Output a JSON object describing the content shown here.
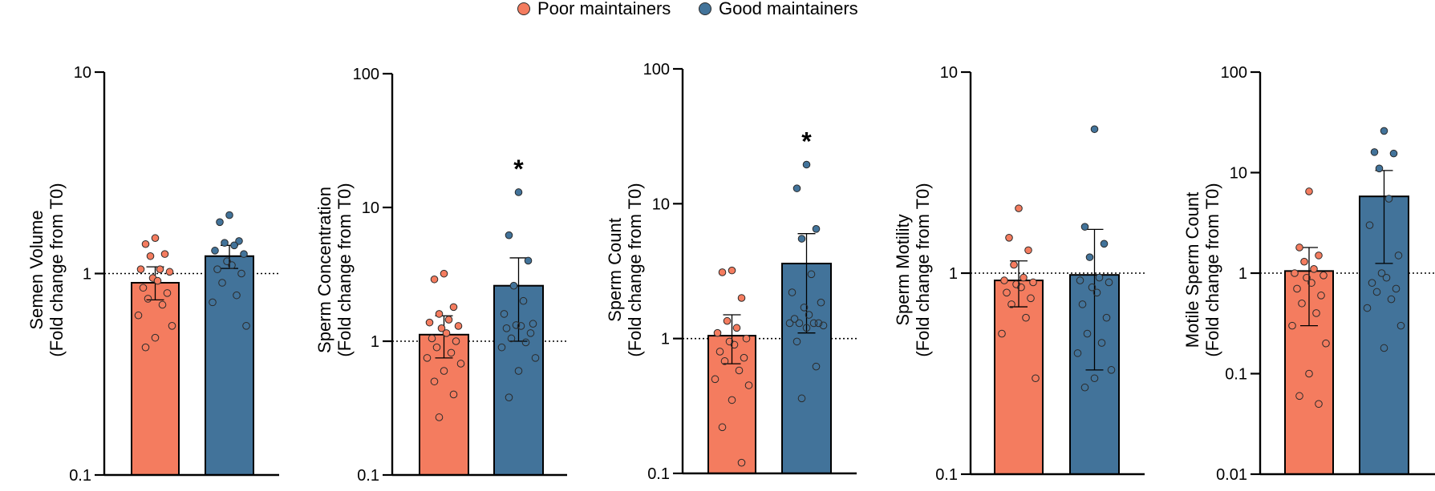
{
  "legend": {
    "items": [
      {
        "label": "Poor maintainers",
        "color": "#F47C5F"
      },
      {
        "label": "Good maintainers",
        "color": "#42739A"
      }
    ]
  },
  "chart_data": [
    {
      "type": "bar",
      "scale": "log",
      "ylabel_lines": [
        "Semen Volume",
        "(Fold change from T0)"
      ],
      "ylim": [
        0.1,
        10
      ],
      "ticks": [
        0.1,
        1,
        10
      ],
      "tick_labels": [
        "0.1",
        "1",
        "10"
      ],
      "reference_line": 1,
      "significance": "",
      "categories": [
        "Poor maintainers",
        "Good maintainers"
      ],
      "values": [
        0.9,
        1.22
      ],
      "error_upper": [
        1.08,
        1.38
      ],
      "error_lower": [
        0.74,
        1.06
      ],
      "points": [
        [
          1.5,
          1.4,
          1.25,
          1.22,
          1.05,
          1.05,
          1.02,
          0.95,
          0.92,
          0.85,
          0.8,
          0.75,
          0.7,
          0.62,
          0.55,
          0.48,
          0.43
        ],
        [
          1.95,
          1.8,
          1.45,
          1.42,
          1.38,
          1.3,
          1.25,
          1.15,
          1.1,
          1.05,
          1.0,
          0.9,
          0.78,
          0.72,
          0.55
        ]
      ]
    },
    {
      "type": "bar",
      "scale": "log",
      "ylabel_lines": [
        "Sperm Concentration",
        "(Fold change from T0)"
      ],
      "ylim": [
        0.1,
        100
      ],
      "ticks": [
        0.1,
        1,
        10,
        100
      ],
      "tick_labels": [
        "0.1",
        "1",
        "10",
        "100"
      ],
      "reference_line": 1,
      "significance": "*",
      "categories": [
        "Poor maintainers",
        "Good maintainers"
      ],
      "values": [
        1.12,
        2.6
      ],
      "error_upper": [
        1.55,
        4.2
      ],
      "error_lower": [
        0.75,
        1.0
      ],
      "points": [
        [
          3.2,
          2.9,
          1.8,
          1.6,
          1.45,
          1.38,
          1.3,
          1.25,
          1.15,
          1.05,
          1.0,
          0.9,
          0.82,
          0.75,
          0.68,
          0.6,
          0.5,
          0.4,
          0.27
        ],
        [
          13,
          6.2,
          4.0,
          2.6,
          2.0,
          1.6,
          1.35,
          1.32,
          1.3,
          1.25,
          1.15,
          1.05,
          0.98,
          0.9,
          0.75,
          0.6,
          0.38
        ]
      ]
    },
    {
      "type": "bar",
      "scale": "log",
      "ylabel_lines": [
        "Sperm Count",
        "(Fold change from T0)"
      ],
      "ylim": [
        0.1,
        100
      ],
      "ticks": [
        0.1,
        1,
        10,
        100
      ],
      "tick_labels": [
        "0.1",
        "1",
        "10",
        "100"
      ],
      "reference_line": 1,
      "significance": "*",
      "categories": [
        "Poor maintainers",
        "Good maintainers"
      ],
      "values": [
        1.05,
        3.6
      ],
      "error_upper": [
        1.5,
        6.0
      ],
      "error_lower": [
        0.65,
        1.1
      ],
      "points": [
        [
          3.2,
          3.1,
          2.0,
          1.35,
          1.2,
          1.1,
          1.0,
          0.95,
          0.9,
          0.8,
          0.72,
          0.68,
          0.58,
          0.5,
          0.45,
          0.35,
          0.22,
          0.12
        ],
        [
          19.5,
          13,
          6.5,
          5.5,
          3.0,
          2.2,
          1.85,
          1.7,
          1.5,
          1.4,
          1.3,
          1.3,
          1.3,
          1.3,
          1.25,
          1.2,
          0.95,
          0.62,
          0.36
        ]
      ]
    },
    {
      "type": "bar",
      "scale": "log",
      "ylabel_lines": [
        "Sperm Motility",
        "(Fold change from T0)"
      ],
      "ylim": [
        0.1,
        10
      ],
      "ticks": [
        0.1,
        1,
        10
      ],
      "tick_labels": [
        "0.1",
        "1",
        "10"
      ],
      "reference_line": 1,
      "significance": "",
      "categories": [
        "Poor maintainers",
        "Good maintainers"
      ],
      "values": [
        0.92,
        0.98
      ],
      "error_upper": [
        1.15,
        1.65
      ],
      "error_lower": [
        0.68,
        0.33
      ],
      "points": [
        [
          2.1,
          1.5,
          1.3,
          1.1,
          0.95,
          0.92,
          0.9,
          0.88,
          0.85,
          0.8,
          0.75,
          0.7,
          0.6,
          0.5,
          0.3
        ],
        [
          5.2,
          1.7,
          1.4,
          1.2,
          0.95,
          0.92,
          0.9,
          0.85,
          0.8,
          0.7,
          0.6,
          0.5,
          0.45,
          0.4,
          0.33,
          0.3,
          0.27
        ]
      ]
    },
    {
      "type": "bar",
      "scale": "log",
      "ylabel_lines": [
        "Motile Sperm Count",
        "(Fold change from T0)"
      ],
      "ylim": [
        0.01,
        100
      ],
      "ticks": [
        0.01,
        0.1,
        1,
        10,
        100
      ],
      "tick_labels": [
        "0.01",
        "0.1",
        "1",
        "10",
        "100"
      ],
      "reference_line": 1,
      "significance": "",
      "categories": [
        "Poor maintainers",
        "Good maintainers"
      ],
      "values": [
        1.05,
        5.8
      ],
      "error_upper": [
        1.8,
        10.5
      ],
      "error_lower": [
        0.3,
        1.25
      ],
      "points": [
        [
          6.5,
          1.8,
          1.5,
          1.3,
          1.1,
          1.0,
          0.95,
          0.9,
          0.8,
          0.7,
          0.6,
          0.5,
          0.4,
          0.3,
          0.2,
          0.1,
          0.06,
          0.05
        ],
        [
          26,
          16,
          15.5,
          11,
          5.5,
          3.0,
          1.5,
          1.0,
          0.9,
          0.8,
          0.7,
          0.65,
          0.55,
          0.45,
          0.3,
          0.18
        ]
      ]
    }
  ]
}
